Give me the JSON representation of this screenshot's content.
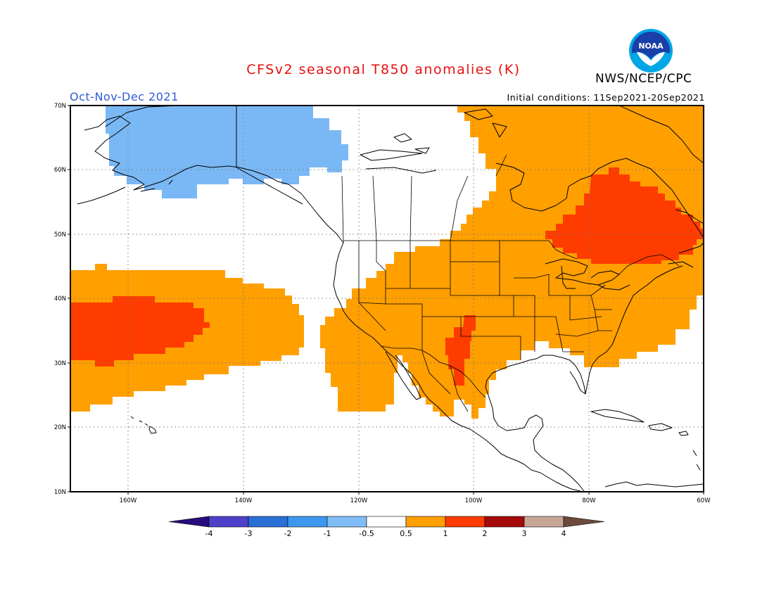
{
  "header": {
    "title": "CFSv2 seasonal T850 anomalies (K)",
    "season": "Oct-Nov-Dec 2021",
    "initial_conditions": "Initial conditions: 11Sep2021-20Sep2021",
    "agency": "NWS/NCEP/CPC",
    "logo_text": "NOAA"
  },
  "map": {
    "lat_labels": [
      "70N",
      "60N",
      "50N",
      "40N",
      "30N",
      "20N",
      "10N"
    ],
    "lon_labels": [
      "160W",
      "140W",
      "120W",
      "100W",
      "80W",
      "60W"
    ]
  },
  "legend": {
    "labels": [
      "-4",
      "-3",
      "-2",
      "-1",
      "-0.5",
      "0.5",
      "1",
      "2",
      "3",
      "4"
    ],
    "colors": [
      "#2a0b7d",
      "#4f40c9",
      "#2a6fd6",
      "#3e97ef",
      "#80bdf7",
      "#ffffff",
      "#ff9f00",
      "#ff3c00",
      "#a50a0a",
      "#c9a596",
      "#6c4a3e"
    ]
  },
  "colors": {
    "cool": "#7ab8f5",
    "warm": "#ff9f00",
    "hot": "#ff3c00"
  }
}
